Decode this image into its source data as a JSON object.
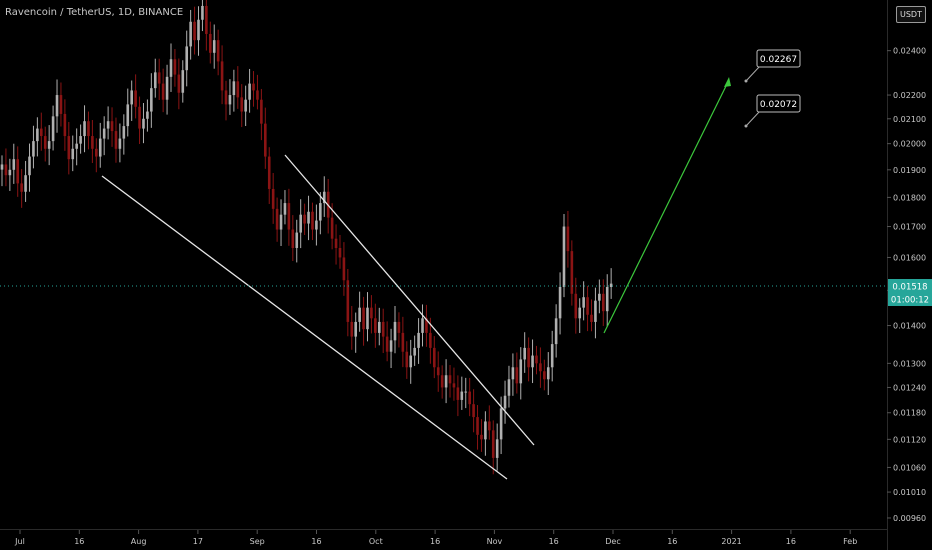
{
  "header": {
    "title": "Ravencoin / TetherUS, 1D, BINANCE",
    "currency": "USDT"
  },
  "colors": {
    "background": "#000000",
    "candle_up": "#b0b0b0",
    "candle_down": "#8b1414",
    "trendline": "#e6e6e6",
    "projection_arrow": "#3cc83c",
    "price_badge": "#26a69a"
  },
  "chart_data": {
    "type": "candlestick",
    "y_scale": "log",
    "ylim": [
      0.00945,
      0.0263
    ],
    "y_ticks": [
      0.0096,
      0.0101,
      0.0106,
      0.0112,
      0.0118,
      0.0124,
      0.013,
      0.014,
      0.015,
      0.016,
      0.017,
      0.018,
      0.019,
      0.02,
      0.021,
      0.022,
      0.024
    ],
    "y_tick_labels": [
      "0.00960",
      "0.01010",
      "0.01060",
      "0.01120",
      "0.01180",
      "0.01240",
      "0.01300",
      "0.01400",
      "0.01500",
      "0.01600",
      "0.01700",
      "0.01800",
      "0.01900",
      "0.02000",
      "0.02100",
      "0.02200",
      "0.02400"
    ],
    "x_ticks": [
      "Jul",
      "16",
      "Aug",
      "17",
      "Sep",
      "16",
      "Oct",
      "16",
      "Nov",
      "16",
      "Dec",
      "16",
      "2021",
      "16",
      "Feb"
    ],
    "current_price": "0.01518",
    "countdown": "01:00:12",
    "targets": [
      "0.02267",
      "0.02072"
    ],
    "closes": [
      0.0192,
      0.0188,
      0.019,
      0.0194,
      0.0185,
      0.0182,
      0.0188,
      0.0195,
      0.0201,
      0.0206,
      0.0203,
      0.0198,
      0.0201,
      0.0211,
      0.022,
      0.0212,
      0.0203,
      0.0194,
      0.0198,
      0.02,
      0.0203,
      0.0209,
      0.0203,
      0.0198,
      0.0195,
      0.0202,
      0.0206,
      0.0209,
      0.0205,
      0.0198,
      0.0202,
      0.0207,
      0.0216,
      0.0222,
      0.0215,
      0.0206,
      0.021,
      0.0213,
      0.0223,
      0.023,
      0.0225,
      0.0218,
      0.0228,
      0.0236,
      0.0229,
      0.0221,
      0.0231,
      0.0242,
      0.0254,
      0.0245,
      0.0255,
      0.0262,
      0.0248,
      0.0239,
      0.0245,
      0.0235,
      0.0222,
      0.0216,
      0.022,
      0.0226,
      0.0219,
      0.0213,
      0.0218,
      0.0225,
      0.0222,
      0.0218,
      0.0208,
      0.0195,
      0.0183,
      0.0176,
      0.0169,
      0.0174,
      0.0178,
      0.0169,
      0.0163,
      0.0168,
      0.0174,
      0.0171,
      0.0175,
      0.0169,
      0.0172,
      0.0178,
      0.0182,
      0.0173,
      0.0166,
      0.0163,
      0.016,
      0.0153,
      0.0141,
      0.0137,
      0.0141,
      0.0145,
      0.0139,
      0.0145,
      0.0142,
      0.0138,
      0.0141,
      0.0137,
      0.0133,
      0.0136,
      0.0141,
      0.0138,
      0.0133,
      0.0129,
      0.0132,
      0.0134,
      0.0138,
      0.0142,
      0.0138,
      0.0134,
      0.0129,
      0.0127,
      0.0124,
      0.0127,
      0.0125,
      0.0124,
      0.0121,
      0.0123,
      0.0123,
      0.012,
      0.0117,
      0.0113,
      0.0112,
      0.0116,
      0.0114,
      0.0108,
      0.0112,
      0.0119,
      0.0122,
      0.0126,
      0.0129,
      0.0125,
      0.0131,
      0.0134,
      0.0129,
      0.0132,
      0.013,
      0.0128,
      0.0126,
      0.0129,
      0.0135,
      0.0142,
      0.0151,
      0.017,
      0.0162,
      0.0149,
      0.0142,
      0.0145,
      0.0148,
      0.0143,
      0.0141,
      0.0147,
      0.0149,
      0.0144,
      0.0151,
      0.0152
    ]
  }
}
